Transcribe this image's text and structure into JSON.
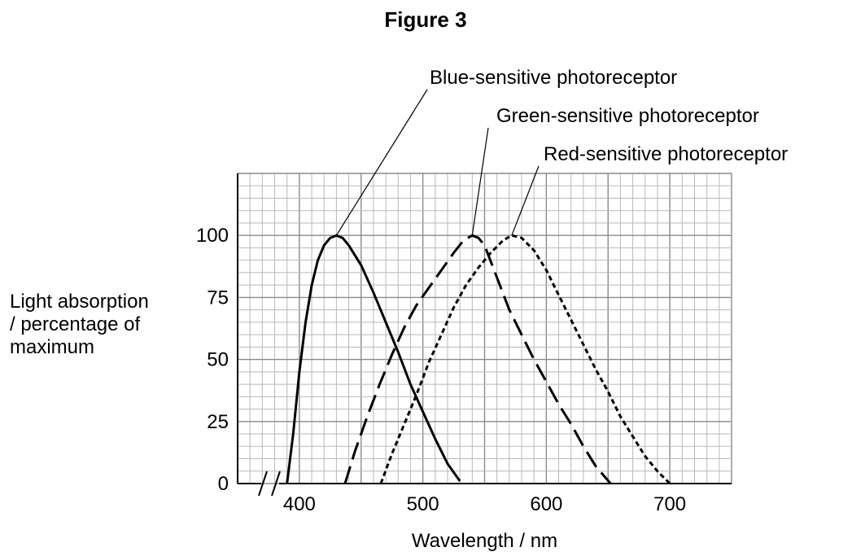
{
  "figure_title": "Figure 3",
  "chart_data": {
    "type": "line",
    "title": "Figure 3",
    "xlabel": "Wavelength / nm",
    "ylabel": [
      "Light absorption",
      "/ percentage of",
      "maximum"
    ],
    "xlim": [
      350,
      750
    ],
    "ylim": [
      0,
      125
    ],
    "x_ticks": [
      400,
      500,
      600,
      700
    ],
    "y_ticks": [
      0,
      25,
      50,
      75,
      100
    ],
    "grid": true,
    "axis_break": true,
    "series": [
      {
        "name": "Blue-sensitive photoreceptor",
        "line_style": "solid",
        "points": [
          [
            390,
            0
          ],
          [
            395,
            20
          ],
          [
            400,
            45
          ],
          [
            405,
            65
          ],
          [
            410,
            80
          ],
          [
            415,
            90
          ],
          [
            420,
            96
          ],
          [
            425,
            99
          ],
          [
            430,
            100
          ],
          [
            435,
            99
          ],
          [
            440,
            96
          ],
          [
            450,
            88
          ],
          [
            460,
            77
          ],
          [
            470,
            65
          ],
          [
            480,
            53
          ],
          [
            490,
            40
          ],
          [
            500,
            29
          ],
          [
            510,
            18
          ],
          [
            520,
            8
          ],
          [
            530,
            1
          ]
        ]
      },
      {
        "name": "Green-sensitive photoreceptor",
        "line_style": "dashed",
        "points": [
          [
            437,
            0
          ],
          [
            445,
            13
          ],
          [
            455,
            27
          ],
          [
            465,
            40
          ],
          [
            475,
            52
          ],
          [
            485,
            63
          ],
          [
            495,
            72
          ],
          [
            505,
            79
          ],
          [
            515,
            86
          ],
          [
            525,
            93
          ],
          [
            533,
            98
          ],
          [
            540,
            100
          ],
          [
            545,
            99
          ],
          [
            550,
            96
          ],
          [
            560,
            83
          ],
          [
            570,
            70
          ],
          [
            580,
            60
          ],
          [
            590,
            50
          ],
          [
            600,
            41
          ],
          [
            610,
            32
          ],
          [
            620,
            24
          ],
          [
            630,
            15
          ],
          [
            640,
            7
          ],
          [
            652,
            0
          ]
        ]
      },
      {
        "name": "Red-sensitive photoreceptor",
        "line_style": "dotted",
        "points": [
          [
            466,
            0
          ],
          [
            475,
            12
          ],
          [
            485,
            24
          ],
          [
            495,
            36
          ],
          [
            505,
            49
          ],
          [
            515,
            60
          ],
          [
            525,
            71
          ],
          [
            535,
            80
          ],
          [
            545,
            87
          ],
          [
            555,
            93
          ],
          [
            565,
            98
          ],
          [
            572,
            100
          ],
          [
            580,
            99
          ],
          [
            590,
            94
          ],
          [
            600,
            86
          ],
          [
            610,
            76
          ],
          [
            620,
            66
          ],
          [
            630,
            56
          ],
          [
            640,
            46
          ],
          [
            650,
            37
          ],
          [
            660,
            27
          ],
          [
            670,
            19
          ],
          [
            680,
            11
          ],
          [
            690,
            5
          ],
          [
            700,
            0
          ]
        ]
      }
    ],
    "annotations": [
      {
        "text": "Blue-sensitive photoreceptor",
        "series": 0
      },
      {
        "text": "Green-sensitive photoreceptor",
        "series": 1
      },
      {
        "text": "Red-sensitive photoreceptor",
        "series": 2
      }
    ]
  }
}
